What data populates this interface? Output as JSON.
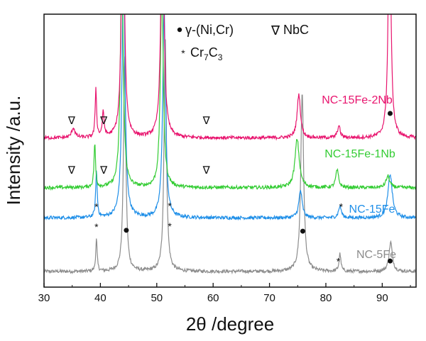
{
  "chart_data": {
    "type": "line",
    "title": "",
    "xlabel": "2θ /degree",
    "ylabel": "Intensity /a.u.",
    "xlim": [
      30,
      96
    ],
    "xticks": [
      30,
      40,
      50,
      60,
      70,
      80,
      90
    ],
    "legend": [
      {
        "symbol": "•",
        "text": "γ-(Ni,Cr)"
      },
      {
        "symbol": "∇",
        "text": "NbC"
      },
      {
        "symbol": "*",
        "text": "Cr7C3"
      }
    ],
    "series": [
      {
        "name": "NC-5Fe",
        "color": "#8c8c8c",
        "baseline": 0.16,
        "peaks": [
          [
            39.3,
            0.33,
            0.15
          ],
          [
            44.3,
            2.2,
            0.25
          ],
          [
            51.5,
            2.4,
            0.25
          ],
          [
            75.8,
            1.85,
            0.3
          ],
          [
            82.5,
            0.18,
            0.2
          ],
          [
            91.5,
            0.3,
            0.35
          ]
        ],
        "markers": [
          {
            "x": 39.3,
            "sym": "*",
            "h": 2.5
          },
          {
            "x": 44.6,
            "sym": "•",
            "h": 2.35
          },
          {
            "x": 52.3,
            "sym": "*",
            "h": 2.55
          },
          {
            "x": 75.9,
            "sym": "•",
            "h": 2.3
          },
          {
            "x": 82.2,
            "sym": "*",
            "h": 0.55
          },
          {
            "x": 91.4,
            "sym": "•",
            "h": 0.6
          }
        ]
      },
      {
        "name": "NC-15Fe",
        "color": "#1f8fe8",
        "baseline": 0.71,
        "peaks": [
          [
            39.3,
            0.48,
            0.16
          ],
          [
            44.1,
            2.7,
            0.3
          ],
          [
            51.3,
            2.15,
            0.3
          ],
          [
            75.5,
            0.28,
            0.35
          ],
          [
            82.5,
            0.12,
            0.3
          ],
          [
            91.4,
            0.45,
            0.45
          ]
        ],
        "markers": [
          {
            "x": 39.3,
            "sym": "*",
            "h": 0.6
          },
          {
            "x": 52.3,
            "sym": "*",
            "h": 0.65
          },
          {
            "x": 82.7,
            "sym": "*",
            "h": 0.6
          }
        ]
      },
      {
        "name": "NC-15Fe-1Nb",
        "color": "#33cc33",
        "baseline": 1.02,
        "peaks": [
          [
            39.0,
            0.45,
            0.16
          ],
          [
            43.8,
            2.35,
            0.3
          ],
          [
            50.9,
            2.1,
            0.3
          ],
          [
            74.9,
            0.5,
            0.45
          ],
          [
            82.0,
            0.18,
            0.3
          ],
          [
            91.0,
            0.12,
            0.4
          ]
        ],
        "markers": [
          {
            "x": 34.9,
            "sym": "∇",
            "h": 1.0
          },
          {
            "x": 40.6,
            "sym": "∇",
            "h": 1.0
          },
          {
            "x": 58.8,
            "sym": "∇",
            "h": 1.0
          }
        ]
      },
      {
        "name": "NC-15Fe-2Nb",
        "color": "#e8146e",
        "baseline": 1.53,
        "peaks": [
          [
            35.2,
            0.1,
            0.35
          ],
          [
            39.2,
            0.5,
            0.15
          ],
          [
            40.5,
            0.25,
            0.2
          ],
          [
            44.0,
            2.7,
            0.3
          ],
          [
            51.0,
            2.65,
            0.3
          ],
          [
            75.2,
            0.45,
            0.35
          ],
          [
            82.3,
            0.12,
            0.3
          ],
          [
            91.3,
            2.5,
            0.28
          ]
        ],
        "markers": [
          {
            "x": 34.9,
            "sym": "∇",
            "h": 1.0
          },
          {
            "x": 40.6,
            "sym": "∇",
            "h": 1.0
          },
          {
            "x": 58.8,
            "sym": "∇",
            "h": 1.0
          },
          {
            "x": 91.4,
            "sym": "•",
            "h": 1.4
          }
        ]
      }
    ]
  }
}
